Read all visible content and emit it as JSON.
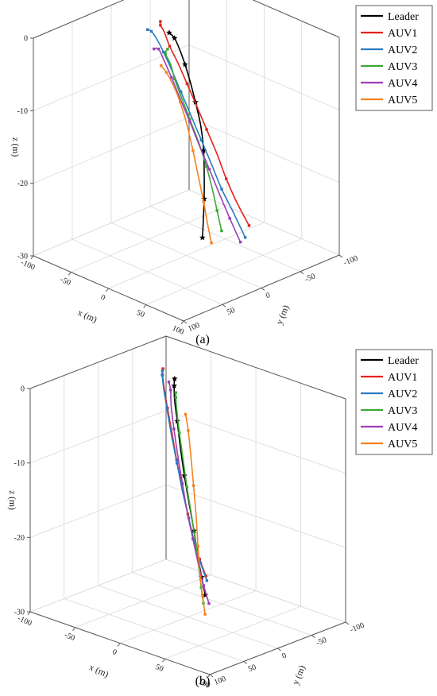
{
  "figure": {
    "caption_a": "(a)",
    "caption_b": "(b)"
  },
  "chart_data": [
    {
      "panel": "(a)",
      "type": "line",
      "projection": "3d",
      "xlabel": "x (m)",
      "ylabel": "y (m)",
      "zlabel": "z (m)",
      "xticks": [
        "-100",
        "-50",
        "0",
        "50",
        "100"
      ],
      "yticks": [
        "100",
        "50",
        "0",
        "-50",
        "-100"
      ],
      "zticks": [
        "0",
        "-10",
        "-20",
        "-30"
      ],
      "xlim": [
        -100,
        100
      ],
      "ylim": [
        -100,
        100
      ],
      "zlim": [
        -30,
        0
      ],
      "grid": true,
      "legend_position": "top-right",
      "series": [
        {
          "name": "Leader",
          "color": "#000000",
          "marker": "star",
          "points": [
            [
              -28,
              -5,
              -0.8
            ],
            [
              -24,
              -8,
              -1.5
            ],
            [
              -17,
              -8,
              -2.8
            ],
            [
              -10,
              -8,
              -4.5
            ],
            [
              -2,
              -7,
              -6.5
            ],
            [
              7,
              -5,
              -8.8
            ],
            [
              16,
              -3,
              -11.5
            ],
            [
              23,
              0,
              -14.5
            ],
            [
              28,
              4,
              -17.5
            ],
            [
              31,
              7,
              -20.5
            ],
            [
              34,
              11,
              -23.3
            ],
            [
              36,
              14,
              -25.3
            ]
          ]
        },
        {
          "name": "AUV1",
          "color": "#e2231a",
          "marker": "square",
          "points": [
            [
              -48,
              -13,
              -0.5
            ],
            [
              -50,
              -15,
              -1.2
            ],
            [
              -48,
              -18,
              -2.2
            ],
            [
              -43,
              -20,
              -4
            ],
            [
              -34,
              -22,
              -6
            ],
            [
              -24,
              -24,
              -8.5
            ],
            [
              -13,
              -26,
              -11.2
            ],
            [
              -2,
              -28,
              -14
            ],
            [
              10,
              -30,
              -17
            ],
            [
              20,
              -32,
              -20
            ],
            [
              30,
              -36,
              -23
            ],
            [
              40,
              -42,
              -26
            ]
          ]
        },
        {
          "name": "AUV2",
          "color": "#2b7bc0",
          "marker": "square",
          "points": [
            [
              -63,
              -11,
              -2.2
            ],
            [
              -60,
              -13,
              -2.4
            ],
            [
              -56,
              -16,
              -3.4
            ],
            [
              -49,
              -18,
              -5
            ],
            [
              -40,
              -20,
              -7.2
            ],
            [
              -30,
              -22,
              -9.8
            ],
            [
              -19,
              -24,
              -12.6
            ],
            [
              -7,
              -26,
              -15.6
            ],
            [
              5,
              -28,
              -18.6
            ],
            [
              16,
              -30,
              -21.5
            ],
            [
              28,
              -34,
              -24.5
            ],
            [
              39,
              -38,
              -27.5
            ]
          ]
        },
        {
          "name": "AUV3",
          "color": "#3aaa35",
          "marker": "square",
          "points": [
            [
              2,
              26,
              -0.3
            ],
            [
              -4,
              23,
              -1.3
            ],
            [
              0,
              20,
              -2.8
            ],
            [
              2,
              17,
              -4.8
            ],
            [
              8,
              14,
              -7.2
            ],
            [
              16,
              11,
              -10
            ],
            [
              25,
              8,
              -13
            ],
            [
              33,
              6,
              -16
            ],
            [
              39,
              4,
              -19
            ],
            [
              43,
              2,
              -21.8
            ],
            [
              47,
              0,
              -24.5
            ]
          ]
        },
        {
          "name": "AUV4",
          "color": "#9b3fb5",
          "marker": "square",
          "points": [
            [
              -40,
              3,
              -3.2
            ],
            [
              -38,
              -1,
              -3.3
            ],
            [
              -34,
              -4,
              -4.8
            ],
            [
              -27,
              -7,
              -7
            ],
            [
              -18,
              -9,
              -9.5
            ],
            [
              -8,
              -12,
              -12.4
            ],
            [
              3,
              -14,
              -15.4
            ],
            [
              13,
              -17,
              -18.3
            ],
            [
              23,
              -20,
              -21.3
            ],
            [
              33,
              -24,
              -24.5
            ],
            [
              43,
              -28,
              -27.5
            ]
          ]
        },
        {
          "name": "AUV5",
          "color": "#f58220",
          "marker": "square",
          "points": [
            [
              12,
              44,
              -1.3
            ],
            [
              16,
              41,
              -2.2
            ],
            [
              22,
              38,
              -3.8
            ],
            [
              28,
              35,
              -6
            ],
            [
              34,
              32,
              -9
            ],
            [
              39,
              29,
              -12.5
            ],
            [
              43,
              26,
              -16
            ],
            [
              46,
              22,
              -19.6
            ],
            [
              48,
              19,
              -22.6
            ],
            [
              51,
              17,
              -25.2
            ]
          ]
        }
      ]
    },
    {
      "panel": "(b)",
      "type": "line",
      "projection": "3d",
      "xlabel": "x (m)",
      "ylabel": "y (m)",
      "zlabel": "z (m)",
      "xticks": [
        "-100",
        "-50",
        "0",
        "50",
        "100"
      ],
      "yticks": [
        "100",
        "50",
        "0",
        "-50",
        "-100"
      ],
      "zticks": [
        "0",
        "-10",
        "-20",
        "-30"
      ],
      "xlim": [
        -100,
        100
      ],
      "ylim": [
        -100,
        100
      ],
      "zlim": [
        -30,
        0
      ],
      "grid": true,
      "legend_position": "top-right",
      "series": [
        {
          "name": "Leader",
          "color": "#000000",
          "marker": "star",
          "points": [
            [
              -36,
              -28,
              -0.5
            ],
            [
              -38,
              -30,
              -1.6
            ],
            [
              -36,
              -28,
              -3.4
            ],
            [
              -30,
              -24,
              -5.8
            ],
            [
              -22,
              -18,
              -8.8
            ],
            [
              -13,
              -12,
              -12
            ],
            [
              -3,
              -6,
              -15.2
            ],
            [
              6,
              -1,
              -18.2
            ],
            [
              14,
              4,
              -21
            ],
            [
              22,
              9,
              -23.4
            ],
            [
              30,
              14,
              -25.3
            ]
          ]
        },
        {
          "name": "AUV1",
          "color": "#e2231a",
          "marker": "square",
          "points": [
            [
              -58,
              -40,
              -0.5
            ],
            [
              -60,
              -42,
              -1.5
            ],
            [
              -58,
              -42,
              -3.3
            ],
            [
              -53,
              -40,
              -5.6
            ],
            [
              -45,
              -36,
              -8.4
            ],
            [
              -36,
              -31,
              -11.5
            ],
            [
              -26,
              -26,
              -14.6
            ],
            [
              -16,
              -21,
              -17.6
            ],
            [
              -6,
              -16,
              -20.4
            ],
            [
              4,
              -12,
              -22.5
            ],
            [
              14,
              -8,
              -24.2
            ]
          ]
        },
        {
          "name": "AUV2",
          "color": "#2b7bc0",
          "marker": "square",
          "points": [
            [
              -70,
              -55,
              -1.8
            ],
            [
              -68,
              -52,
              -2.2
            ],
            [
              -64,
              -49,
              -3.8
            ],
            [
              -58,
              -46,
              -6.2
            ],
            [
              -50,
              -42,
              -9.2
            ],
            [
              -41,
              -38,
              -12.4
            ],
            [
              -31,
              -33,
              -15.6
            ],
            [
              -21,
              -29,
              -18.6
            ],
            [
              -11,
              -24,
              -21.2
            ],
            [
              -1,
              -20,
              -23.5
            ],
            [
              9,
              -16,
              -25.3
            ]
          ]
        },
        {
          "name": "AUV3",
          "color": "#3aaa35",
          "marker": "square",
          "points": [
            [
              -12,
              2,
              -0.3
            ],
            [
              -15,
              -2,
              -1.2
            ],
            [
              -13,
              -1,
              -3
            ],
            [
              -8,
              2,
              -5.5
            ],
            [
              -1,
              6,
              -8.5
            ],
            [
              8,
              12,
              -11.8
            ],
            [
              18,
              18,
              -15.2
            ],
            [
              27,
              24,
              -18.4
            ],
            [
              35,
              30,
              -21
            ],
            [
              42,
              36,
              -23
            ],
            [
              49,
              42,
              -24.6
            ]
          ]
        },
        {
          "name": "AUV4",
          "color": "#9b3fb5",
          "marker": "square",
          "points": [
            [
              -47,
              -34,
              -1.6
            ],
            [
              -45,
              -34,
              -2.6
            ],
            [
              -42,
              -31,
              -4.6
            ],
            [
              -36,
              -27,
              -7.2
            ],
            [
              -28,
              -22,
              -10.2
            ],
            [
              -19,
              -17,
              -13.5
            ],
            [
              -9,
              -11,
              -16.7
            ],
            [
              1,
              -6,
              -19.7
            ],
            [
              10,
              -2,
              -22.5
            ],
            [
              19,
              2,
              -24.9
            ],
            [
              28,
              6,
              -26.8
            ]
          ]
        },
        {
          "name": "AUV5",
          "color": "#f58220",
          "marker": "square",
          "points": [
            [
              14,
              22,
              -1.4
            ],
            [
              20,
              26,
              -3.2
            ],
            [
              26,
              30,
              -6.2
            ],
            [
              32,
              34,
              -9.8
            ],
            [
              38,
              38,
              -13.6
            ],
            [
              43,
              42,
              -17.2
            ],
            [
              48,
              46,
              -20.4
            ],
            [
              54,
              50,
              -23
            ],
            [
              60,
              54,
              -25.2
            ]
          ]
        }
      ]
    }
  ]
}
